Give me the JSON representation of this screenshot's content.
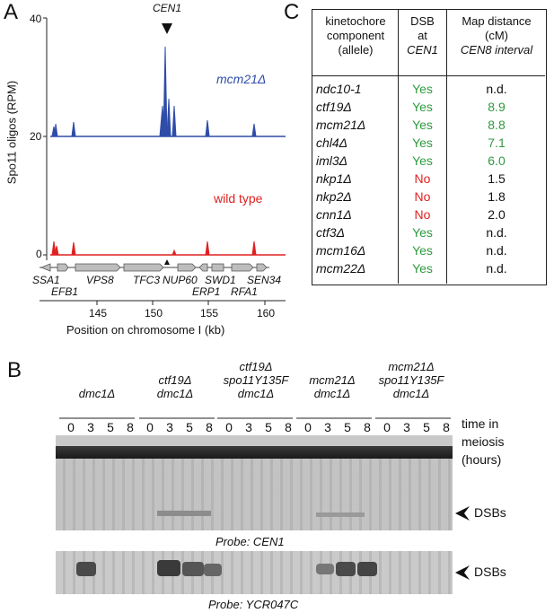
{
  "panelA": {
    "letter": "A",
    "ylabel": "Spo11 oligos (RPM)",
    "yticks": [
      "40",
      "20",
      "0"
    ],
    "peak_label": "CEN1",
    "series_labels": {
      "mcm21": "mcm21Δ",
      "wt": "wild type"
    },
    "xlabel": "Position on chromosome I (kb)",
    "xticks": [
      "145",
      "150",
      "155",
      "160"
    ],
    "genes_top": [
      "SSA1",
      "VPS8",
      "TFC3",
      "NUP60",
      "SWD1",
      "SEN34"
    ],
    "genes_bottom": [
      "EFB1",
      "ERP1",
      "RFA1"
    ],
    "colors": {
      "mcm21": "#2f4ca8",
      "wt": "#e02020"
    }
  },
  "panelB": {
    "letter": "B",
    "groups": [
      {
        "lines": [
          "dmc1Δ"
        ]
      },
      {
        "lines": [
          "ctf19Δ",
          "dmc1Δ"
        ]
      },
      {
        "lines": [
          "ctf19Δ",
          "spo11Y135F",
          "dmc1Δ"
        ]
      },
      {
        "lines": [
          "mcm21Δ",
          "dmc1Δ"
        ]
      },
      {
        "lines": [
          "mcm21Δ",
          "spo11Y135F",
          "dmc1Δ"
        ]
      }
    ],
    "timepoints": [
      "0",
      "3",
      "5",
      "8"
    ],
    "time_label": [
      "time in",
      "meiosis",
      "(hours)"
    ],
    "dsb_label": "DSBs",
    "probe1": "Probe: CEN1",
    "probe2": "Probe: YCR047C"
  },
  "panelC": {
    "letter": "C",
    "headers": [
      [
        "kinetochore",
        "component",
        "(allele)"
      ],
      [
        "DSB",
        "at",
        "CEN1"
      ],
      [
        "Map distance",
        "(cM)",
        "CEN8 interval"
      ]
    ],
    "rows": [
      {
        "allele": "ndc10-1",
        "dsb": "Yes",
        "map": "n.d."
      },
      {
        "allele": "ctf19Δ",
        "dsb": "Yes",
        "map": "8.9"
      },
      {
        "allele": "mcm21Δ",
        "dsb": "Yes",
        "map": "8.8"
      },
      {
        "allele": "chl4Δ",
        "dsb": "Yes",
        "map": "7.1"
      },
      {
        "allele": "iml3Δ",
        "dsb": "Yes",
        "map": "6.0"
      },
      {
        "allele": "nkp1Δ",
        "dsb": "No",
        "map": "1.5"
      },
      {
        "allele": "nkp2Δ",
        "dsb": "No",
        "map": "1.8"
      },
      {
        "allele": "cnn1Δ",
        "dsb": "No",
        "map": "2.0"
      },
      {
        "allele": "ctf3Δ",
        "dsb": "Yes",
        "map": "n.d."
      },
      {
        "allele": "mcm16Δ",
        "dsb": "Yes",
        "map": "n.d."
      },
      {
        "allele": "mcm22Δ",
        "dsb": "Yes",
        "map": "n.d."
      }
    ],
    "map_green": [
      false,
      true,
      true,
      true,
      true,
      false,
      false,
      false,
      false,
      false,
      false
    ]
  }
}
